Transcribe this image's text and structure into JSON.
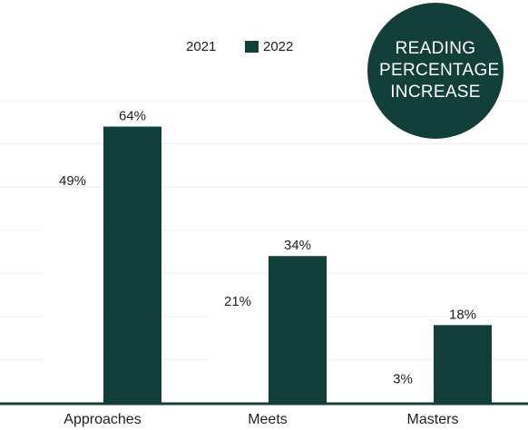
{
  "chart_data": {
    "type": "bar",
    "title": "READING PERCENTAGE INCREASE",
    "categories": [
      "Approaches",
      "Meets",
      "Masters"
    ],
    "series": [
      {
        "name": "2021",
        "color": "#ffffff",
        "values": [
          49,
          21,
          3
        ],
        "value_labels": [
          "49%",
          "21%",
          "3%"
        ]
      },
      {
        "name": "2022",
        "color": "#133f3a",
        "values": [
          64,
          34,
          18
        ],
        "value_labels": [
          "64%",
          "34%",
          "18%"
        ]
      }
    ],
    "ylim": [
      0,
      70
    ],
    "yticks": [
      0,
      10,
      20,
      30,
      40,
      50,
      60,
      70
    ],
    "grid": true
  }
}
